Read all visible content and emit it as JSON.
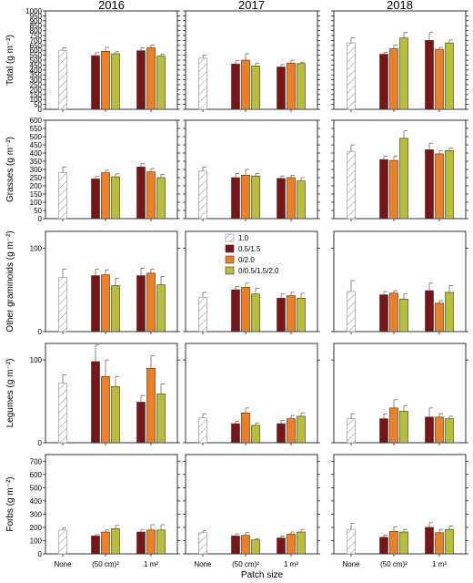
{
  "chart_data": {
    "type": "bar",
    "years": [
      "2016",
      "2017",
      "2018"
    ],
    "xlabel": "Patch size",
    "categories": [
      "None",
      "(50 cm)²",
      "1 m²"
    ],
    "legend": {
      "placement": "center",
      "entries": [
        "1.0",
        "0.5/1.5",
        "0/2.0",
        "0/0.5/1.5/2.0"
      ]
    },
    "colors": {
      "control": "#ffffff",
      "0.5/1.5": "#7b1416",
      "0/2.0": "#f07f22",
      "0/0.5/1.5/2.0": "#b8bf37",
      "hatch": "#8a8a8a"
    },
    "rows": [
      {
        "ylabel": "Total (g m⁻²)",
        "ylim": [
          0,
          1000
        ],
        "ticks": [
          0,
          50,
          100,
          150,
          200,
          250,
          300,
          350,
          400,
          450,
          500,
          550,
          600,
          650,
          700,
          750,
          800,
          850,
          900,
          950,
          1000
        ],
        "panels": [
          {
            "none": {
              "v": 600,
              "e": 25
            },
            "patch50": [
              {
                "v": 545,
                "e": 30
              },
              {
                "v": 590,
                "e": 40
              },
              {
                "v": 565,
                "e": 20
              }
            ],
            "patch1m": [
              {
                "v": 595,
                "e": 30
              },
              {
                "v": 625,
                "e": 30
              },
              {
                "v": 540,
                "e": 20
              }
            ]
          },
          {
            "none": {
              "v": 520,
              "e": 30
            },
            "patch50": [
              {
                "v": 460,
                "e": 35
              },
              {
                "v": 500,
                "e": 65
              },
              {
                "v": 440,
                "e": 30
              }
            ],
            "patch1m": [
              {
                "v": 430,
                "e": 25
              },
              {
                "v": 470,
                "e": 30
              },
              {
                "v": 465,
                "e": 15
              }
            ]
          },
          {
            "none": {
              "v": 675,
              "e": 50
            },
            "patch50": [
              {
                "v": 560,
                "e": 20
              },
              {
                "v": 615,
                "e": 40
              },
              {
                "v": 725,
                "e": 55
              }
            ],
            "patch1m": [
              {
                "v": 700,
                "e": 80
              },
              {
                "v": 610,
                "e": 20
              },
              {
                "v": 675,
                "e": 30
              }
            ]
          }
        ]
      },
      {
        "ylabel": "Grasses (g m⁻²)",
        "ylim": [
          0,
          600
        ],
        "ticks": [
          0,
          50,
          100,
          150,
          200,
          250,
          300,
          350,
          400,
          450,
          500,
          550,
          600
        ],
        "panels": [
          {
            "none": {
              "v": 280,
              "e": 35
            },
            "patch50": [
              {
                "v": 242,
                "e": 15
              },
              {
                "v": 280,
                "e": 15
              },
              {
                "v": 255,
                "e": 18
              }
            ],
            "patch1m": [
              {
                "v": 315,
                "e": 20
              },
              {
                "v": 285,
                "e": 20
              },
              {
                "v": 250,
                "e": 20
              }
            ]
          },
          {
            "none": {
              "v": 290,
              "e": 25
            },
            "patch50": [
              {
                "v": 250,
                "e": 25
              },
              {
                "v": 265,
                "e": 35
              },
              {
                "v": 260,
                "e": 15
              }
            ],
            "patch1m": [
              {
                "v": 245,
                "e": 15
              },
              {
                "v": 250,
                "e": 15
              },
              {
                "v": 230,
                "e": 20
              }
            ]
          },
          {
            "none": {
              "v": 410,
              "e": 40
            },
            "patch50": [
              {
                "v": 360,
                "e": 20
              },
              {
                "v": 355,
                "e": 25
              },
              {
                "v": 490,
                "e": 45
              }
            ],
            "patch1m": [
              {
                "v": 420,
                "e": 40
              },
              {
                "v": 395,
                "e": 20
              },
              {
                "v": 415,
                "e": 15
              }
            ]
          }
        ]
      },
      {
        "ylabel": "Other graminoids (g m⁻²)",
        "ylim": [
          0,
          120
        ],
        "ticks": [
          0,
          100
        ],
        "panels": [
          {
            "none": {
              "v": 65,
              "e": 10
            },
            "patch50": [
              {
                "v": 67,
                "e": 8
              },
              {
                "v": 68,
                "e": 6
              },
              {
                "v": 55,
                "e": 9
              }
            ],
            "patch1m": [
              {
                "v": 67,
                "e": 9
              },
              {
                "v": 70,
                "e": 5
              },
              {
                "v": 56,
                "e": 10
              }
            ]
          },
          {
            "none": {
              "v": 41,
              "e": 6
            },
            "patch50": [
              {
                "v": 50,
                "e": 4
              },
              {
                "v": 53,
                "e": 5
              },
              {
                "v": 45,
                "e": 7
              }
            ],
            "patch1m": [
              {
                "v": 40,
                "e": 5
              },
              {
                "v": 43,
                "e": 4
              },
              {
                "v": 40,
                "e": 6
              }
            ]
          },
          {
            "none": {
              "v": 48,
              "e": 13
            },
            "patch50": [
              {
                "v": 44,
                "e": 4
              },
              {
                "v": 46,
                "e": 3
              },
              {
                "v": 39,
                "e": 6
              }
            ],
            "patch1m": [
              {
                "v": 49,
                "e": 9
              },
              {
                "v": 34,
                "e": 3
              },
              {
                "v": 47,
                "e": 8
              }
            ]
          }
        ]
      },
      {
        "ylabel": "Legumes (g m⁻²)",
        "ylim": [
          0,
          120
        ],
        "ticks": [
          0,
          100
        ],
        "panels": [
          {
            "none": {
              "v": 72,
              "e": 10
            },
            "patch50": [
              {
                "v": 98,
                "e": 20
              },
              {
                "v": 80,
                "e": 20
              },
              {
                "v": 68,
                "e": 12
              }
            ],
            "patch1m": [
              {
                "v": 49,
                "e": 8
              },
              {
                "v": 90,
                "e": 15
              },
              {
                "v": 59,
                "e": 12
              }
            ]
          },
          {
            "none": {
              "v": 30,
              "e": 5
            },
            "patch50": [
              {
                "v": 23,
                "e": 3
              },
              {
                "v": 36,
                "e": 6
              },
              {
                "v": 21,
                "e": 3
              }
            ],
            "patch1m": [
              {
                "v": 23,
                "e": 4
              },
              {
                "v": 29,
                "e": 4
              },
              {
                "v": 32,
                "e": 4
              }
            ]
          },
          {
            "none": {
              "v": 29,
              "e": 6
            },
            "patch50": [
              {
                "v": 29,
                "e": 6
              },
              {
                "v": 42,
                "e": 10
              },
              {
                "v": 38,
                "e": 7
              }
            ],
            "patch1m": [
              {
                "v": 31,
                "e": 11
              },
              {
                "v": 31,
                "e": 4
              },
              {
                "v": 29,
                "e": 3
              }
            ]
          }
        ]
      },
      {
        "ylabel": "Forbs (g m⁻²)",
        "ylim": [
          0,
          750
        ],
        "ticks": [
          0,
          100,
          200,
          300,
          400,
          500,
          600,
          700
        ],
        "panels": [
          {
            "none": {
              "v": 180,
              "e": 15
            },
            "patch50": [
              {
                "v": 135,
                "e": 10
              },
              {
                "v": 165,
                "e": 15
              },
              {
                "v": 190,
                "e": 25
              }
            ],
            "patch1m": [
              {
                "v": 165,
                "e": 20
              },
              {
                "v": 180,
                "e": 40
              },
              {
                "v": 180,
                "e": 40
              }
            ]
          },
          {
            "none": {
              "v": 160,
              "e": 15
            },
            "patch50": [
              {
                "v": 135,
                "e": 15
              },
              {
                "v": 140,
                "e": 20
              },
              {
                "v": 105,
                "e": 10
              }
            ],
            "patch1m": [
              {
                "v": 120,
                "e": 15
              },
              {
                "v": 150,
                "e": 15
              },
              {
                "v": 165,
                "e": 20
              }
            ]
          },
          {
            "none": {
              "v": 185,
              "e": 45
            },
            "patch50": [
              {
                "v": 125,
                "e": 15
              },
              {
                "v": 170,
                "e": 35
              },
              {
                "v": 165,
                "e": 20
              }
            ],
            "patch1m": [
              {
                "v": 200,
                "e": 35
              },
              {
                "v": 160,
                "e": 25
              },
              {
                "v": 185,
                "e": 25
              }
            ]
          }
        ]
      }
    ]
  }
}
